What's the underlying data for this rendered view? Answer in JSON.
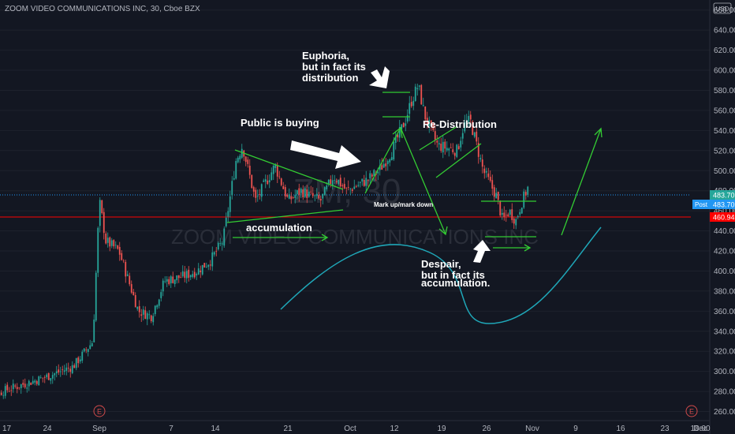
{
  "symbol_title": "ZOOM VIDEO COMMUNICATIONS INC, 30, Cboe BZX",
  "currency_badge": "USD",
  "watermark": {
    "symbol": "ZM, 30",
    "name": "ZOOM VIDEO COMMUNICATIONS INC"
  },
  "earnings_marker": "E",
  "price_labels": {
    "last": "483.70",
    "post_tag": "Post",
    "post": "483.70",
    "level": "460.94"
  },
  "colors": {
    "background": "#131722",
    "up": "#26a69a",
    "down": "#ef5350",
    "annotation_line": "#33cc33",
    "curve": "#1fa7b8",
    "last_line": "#2196f3",
    "level_line": "#ff0000"
  },
  "annotations": {
    "euphoria": [
      "Euphoria,",
      "but in fact its",
      "distribution"
    ],
    "public_buying": "Public is buying",
    "redistribution": "Re-Distribution",
    "markup": "Mark up/mark down",
    "accumulation": "accumulation",
    "despair": [
      "Despair,",
      "but in fact its",
      "accumulation."
    ]
  },
  "chart_data": {
    "type": "candlestick",
    "title": "ZOOM VIDEO COMMUNICATIONS INC, 30, Cboe BZX",
    "y_axis": {
      "ticks": [
        260,
        280,
        300,
        320,
        340,
        360,
        380,
        400,
        420,
        440,
        460,
        480,
        500,
        520,
        540,
        560,
        580,
        600,
        620,
        640,
        660
      ],
      "range": [
        251,
        670
      ]
    },
    "x_axis": {
      "tick_labels": [
        "17",
        "24",
        "Sep",
        "7",
        "14",
        "21",
        "Oct",
        "12",
        "19",
        "26",
        "Nov",
        "9",
        "16",
        "23",
        "Dec",
        "18:00"
      ]
    },
    "price_path": [
      [
        "Aug 13",
        268
      ],
      [
        "Aug 17",
        280
      ],
      [
        "Aug 24",
        295
      ],
      [
        "Aug 28",
        305
      ],
      [
        "Aug 31",
        330
      ],
      [
        "Sep 1",
        470
      ],
      [
        "Sep 2",
        430
      ],
      [
        "Sep 4",
        420
      ],
      [
        "Sep 7",
        360
      ],
      [
        "Sep 9",
        355
      ],
      [
        "Sep 11",
        390
      ],
      [
        "Sep 14",
        395
      ],
      [
        "Sep 16",
        400
      ],
      [
        "Sep 18",
        410
      ],
      [
        "Sep 20",
        430
      ],
      [
        "Sep 22",
        510
      ],
      [
        "Sep 23",
        525
      ],
      [
        "Sep 25",
        470
      ],
      [
        "Sep 28",
        505
      ],
      [
        "Sep 30",
        470
      ],
      [
        "Oct 2",
        480
      ],
      [
        "Oct 5",
        470
      ],
      [
        "Oct 7",
        495
      ],
      [
        "Oct 9",
        480
      ],
      [
        "Oct 12",
        490
      ],
      [
        "Oct 14",
        500
      ],
      [
        "Oct 16",
        520
      ],
      [
        "Oct 18",
        550
      ],
      [
        "Oct 19",
        570
      ],
      [
        "Oct 20",
        585
      ],
      [
        "Oct 21",
        555
      ],
      [
        "Oct 22",
        540
      ],
      [
        "Oct 23",
        525
      ],
      [
        "Oct 26",
        520
      ],
      [
        "Oct 27",
        545
      ],
      [
        "Oct 28",
        550
      ],
      [
        "Oct 29",
        525
      ],
      [
        "Oct 30",
        500
      ],
      [
        "Nov 1",
        475
      ],
      [
        "Nov 2",
        450
      ],
      [
        "Nov 3",
        460
      ],
      [
        "Nov 4",
        450
      ],
      [
        "Nov 5",
        470
      ],
      [
        "Nov 6",
        485
      ]
    ],
    "horizontal_levels": [
      {
        "value": 483.7,
        "label": "483.70"
      },
      {
        "value": 460.94,
        "label": "460.94"
      }
    ]
  }
}
